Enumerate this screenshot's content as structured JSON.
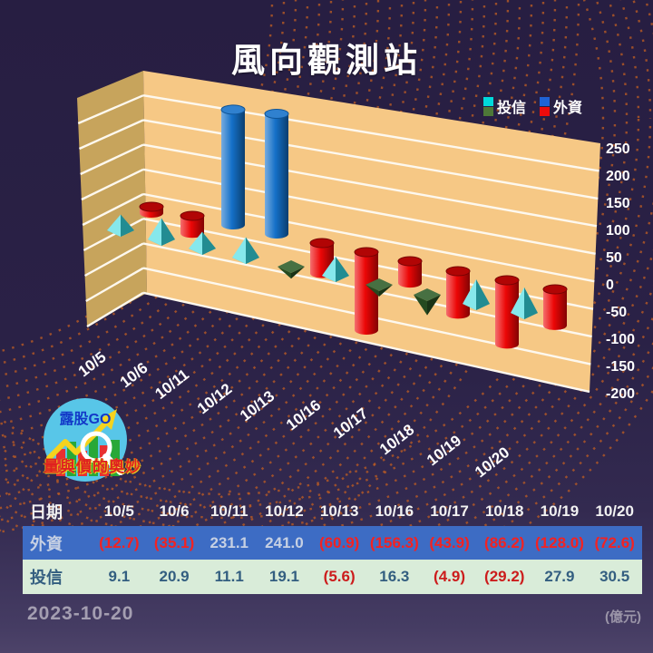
{
  "title": "風向觀測站",
  "date_label": "2023-10-20",
  "unit_label": "(億元)",
  "legend": [
    {
      "name": "投信",
      "pos_color": "#00d9db",
      "neg_color": "#4e7838"
    },
    {
      "name": "外資",
      "pos_color": "#1f63d6",
      "neg_color": "#ec0b0c"
    }
  ],
  "logo": {
    "line1": "露股GO",
    "caption": "量與價的奧妙"
  },
  "colors": {
    "background": "#2a2146",
    "wall_front": "#f6c885",
    "wall_side": "#c7a45c",
    "gridline": "#fdf8ee",
    "dot_pattern": "#b85a24",
    "bar_pos": "#1470c8",
    "bar_neg": "#ec0606",
    "marker_pos": "#35d8e0",
    "marker_neg": "#2e5c28",
    "axis_text": "#ffffff",
    "row_foreign_bg": "#3d6cc4",
    "row_trust_bg": "#d9ecd9",
    "negative_text": "#e32222"
  },
  "chart_data": {
    "type": "bar",
    "title": "風向觀測站",
    "categories": [
      "10/5",
      "10/6",
      "10/11",
      "10/12",
      "10/13",
      "10/16",
      "10/17",
      "10/18",
      "10/19",
      "10/20"
    ],
    "series": [
      {
        "name": "外資",
        "style": "cylinder",
        "values": [
          -12.7,
          -35.1,
          231.1,
          241.0,
          -60.9,
          -156.3,
          -43.9,
          -86.2,
          -128.0,
          -72.6
        ]
      },
      {
        "name": "投信",
        "style": "pyramid",
        "values": [
          9.1,
          20.9,
          11.1,
          19.1,
          -5.6,
          16.3,
          -4.9,
          -29.2,
          27.9,
          30.5
        ]
      }
    ],
    "ylim": [
      -200,
      250
    ],
    "ytick_step": 50,
    "yticks": [
      250,
      200,
      150,
      100,
      50,
      0,
      -50,
      -100,
      -150,
      -200
    ],
    "ylabel": "(億元)",
    "grid": true,
    "legend_position": "top-right",
    "projection": "3d"
  },
  "table": {
    "header_label": "日期",
    "rows": [
      {
        "label": "外資",
        "display": [
          "(12.7)",
          "(35.1)",
          "231.1",
          "241.0",
          "(60.9)",
          "(156.3)",
          "(43.9)",
          "(86.2)",
          "(128.0)",
          "(72.6)"
        ]
      },
      {
        "label": "投信",
        "display": [
          "9.1",
          "20.9",
          "11.1",
          "19.1",
          "(5.6)",
          "16.3",
          "(4.9)",
          "(29.2)",
          "27.9",
          "30.5"
        ]
      }
    ]
  }
}
